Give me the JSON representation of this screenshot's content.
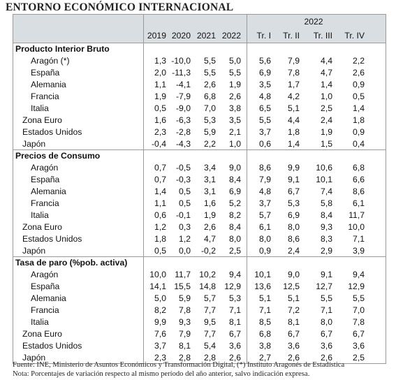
{
  "title": "ENTORNO ECONÓMICO INTERNACIONAL",
  "header": {
    "group": "2022",
    "columns": [
      "2019",
      "2020",
      "2021",
      "2022",
      "Tr. I",
      "Tr. II",
      "Tr. III",
      "Tr. IV"
    ]
  },
  "sections": [
    {
      "title": "Producto Interior Bruto",
      "rows": [
        {
          "label": "Aragón (*)",
          "indent": true,
          "values": [
            "1,3",
            "-10,0",
            "5,5",
            "5,0",
            "5,6",
            "7,9",
            "4,4",
            "2,2"
          ]
        },
        {
          "label": "España",
          "indent": true,
          "values": [
            "2,0",
            "-11,3",
            "5,5",
            "5,5",
            "6,9",
            "7,8",
            "4,7",
            "2,6"
          ]
        },
        {
          "label": "Alemania",
          "indent": true,
          "values": [
            "1,1",
            "-4,1",
            "2,6",
            "1,9",
            "3,5",
            "1,7",
            "1,4",
            "0,9"
          ]
        },
        {
          "label": "Francia",
          "indent": true,
          "values": [
            "1,9",
            "-7,9",
            "6,8",
            "2,6",
            "4,8",
            "4,2",
            "1,0",
            "0,5"
          ]
        },
        {
          "label": "Italia",
          "indent": true,
          "values": [
            "0,5",
            "-9,0",
            "7,0",
            "3,8",
            "6,5",
            "5,1",
            "2,5",
            "1,4"
          ]
        },
        {
          "label": "Zona Euro",
          "indent": false,
          "values": [
            "1,6",
            "-6,3",
            "5,3",
            "3,5",
            "5,5",
            "4,4",
            "2,4",
            "1,8"
          ]
        },
        {
          "label": "Estados Unidos",
          "indent": false,
          "values": [
            "2,3",
            "-2,8",
            "5,9",
            "2,1",
            "3,7",
            "1,8",
            "1,9",
            "0,9"
          ]
        },
        {
          "label": "Japón",
          "indent": false,
          "values": [
            "-0,4",
            "-4,3",
            "2,2",
            "1,0",
            "0,6",
            "1,4",
            "1,5",
            "0,4"
          ]
        }
      ]
    },
    {
      "title": "Precios de Consumo",
      "rows": [
        {
          "label": "Aragón",
          "indent": true,
          "values": [
            "0,7",
            "-0,5",
            "3,4",
            "9,0",
            "8,6",
            "9,9",
            "10,6",
            "6,8"
          ]
        },
        {
          "label": "España",
          "indent": true,
          "values": [
            "0,7",
            "-0,3",
            "3,1",
            "8,4",
            "7,9",
            "9,1",
            "10,1",
            "6,6"
          ]
        },
        {
          "label": "Alemania",
          "indent": true,
          "values": [
            "1,4",
            "0,5",
            "3,1",
            "6,9",
            "4,8",
            "6,7",
            "7,4",
            "8,6"
          ]
        },
        {
          "label": "Francia",
          "indent": true,
          "values": [
            "1,1",
            "0,5",
            "1,6",
            "5,2",
            "3,7",
            "5,3",
            "5,8",
            "6,1"
          ]
        },
        {
          "label": "Italia",
          "indent": true,
          "values": [
            "0,6",
            "-0,1",
            "1,9",
            "8,2",
            "5,7",
            "6,9",
            "8,4",
            "11,7"
          ]
        },
        {
          "label": "Zona Euro",
          "indent": false,
          "values": [
            "1,2",
            "0,3",
            "2,6",
            "8,4",
            "6,1",
            "8,0",
            "9,3",
            "10,0"
          ]
        },
        {
          "label": "Estados Unidos",
          "indent": false,
          "values": [
            "1,8",
            "1,2",
            "4,7",
            "8,0",
            "8,0",
            "8,6",
            "8,3",
            "7,1"
          ]
        },
        {
          "label": "Japón",
          "indent": false,
          "values": [
            "0,5",
            "0,0",
            "-0,2",
            "2,5",
            "0,9",
            "2,4",
            "2,9",
            "3,9"
          ]
        }
      ]
    },
    {
      "title": "Tasa de paro (%pob. activa)",
      "rows": [
        {
          "label": "Aragón",
          "indent": true,
          "values": [
            "10,0",
            "11,7",
            "10,2",
            "9,4",
            "10,1",
            "9,0",
            "9,1",
            "9,4"
          ]
        },
        {
          "label": "España",
          "indent": true,
          "values": [
            "14,1",
            "15,5",
            "14,8",
            "12,9",
            "13,6",
            "12,5",
            "12,7",
            "12,9"
          ]
        },
        {
          "label": "Alemania",
          "indent": true,
          "values": [
            "5,0",
            "5,9",
            "5,7",
            "5,3",
            "5,1",
            "5,1",
            "5,5",
            "5,5"
          ]
        },
        {
          "label": "Francia",
          "indent": true,
          "values": [
            "8,2",
            "7,8",
            "7,7",
            "7,1",
            "7,1",
            "7,2",
            "7,1",
            "7,0"
          ]
        },
        {
          "label": "Italia",
          "indent": true,
          "values": [
            "9,9",
            "9,3",
            "9,5",
            "8,1",
            "8,5",
            "8,1",
            "8,0",
            "7,8"
          ]
        },
        {
          "label": "Zona Euro",
          "indent": false,
          "values": [
            "7,6",
            "7,9",
            "7,7",
            "6,7",
            "6,8",
            "6,7",
            "6,7",
            "6,7"
          ]
        },
        {
          "label": "Estados Unidos",
          "indent": false,
          "values": [
            "3,7",
            "8,1",
            "5,4",
            "3,6",
            "3,8",
            "3,6",
            "3,6",
            "3,6"
          ]
        },
        {
          "label": "Japón",
          "indent": false,
          "values": [
            "2,3",
            "2,8",
            "2,8",
            "2,6",
            "2,7",
            "2,6",
            "2,6",
            "2,5"
          ]
        }
      ]
    }
  ],
  "footnotes": [
    "Fuente: INE, Ministerio de Asuntos Económicos y Transformación Digital, (*) Instituto Aragonés de Estadística",
    "Nota: Porcentajes de variación respecto al mismo período del año anterior, salvo indicación expresa."
  ]
}
